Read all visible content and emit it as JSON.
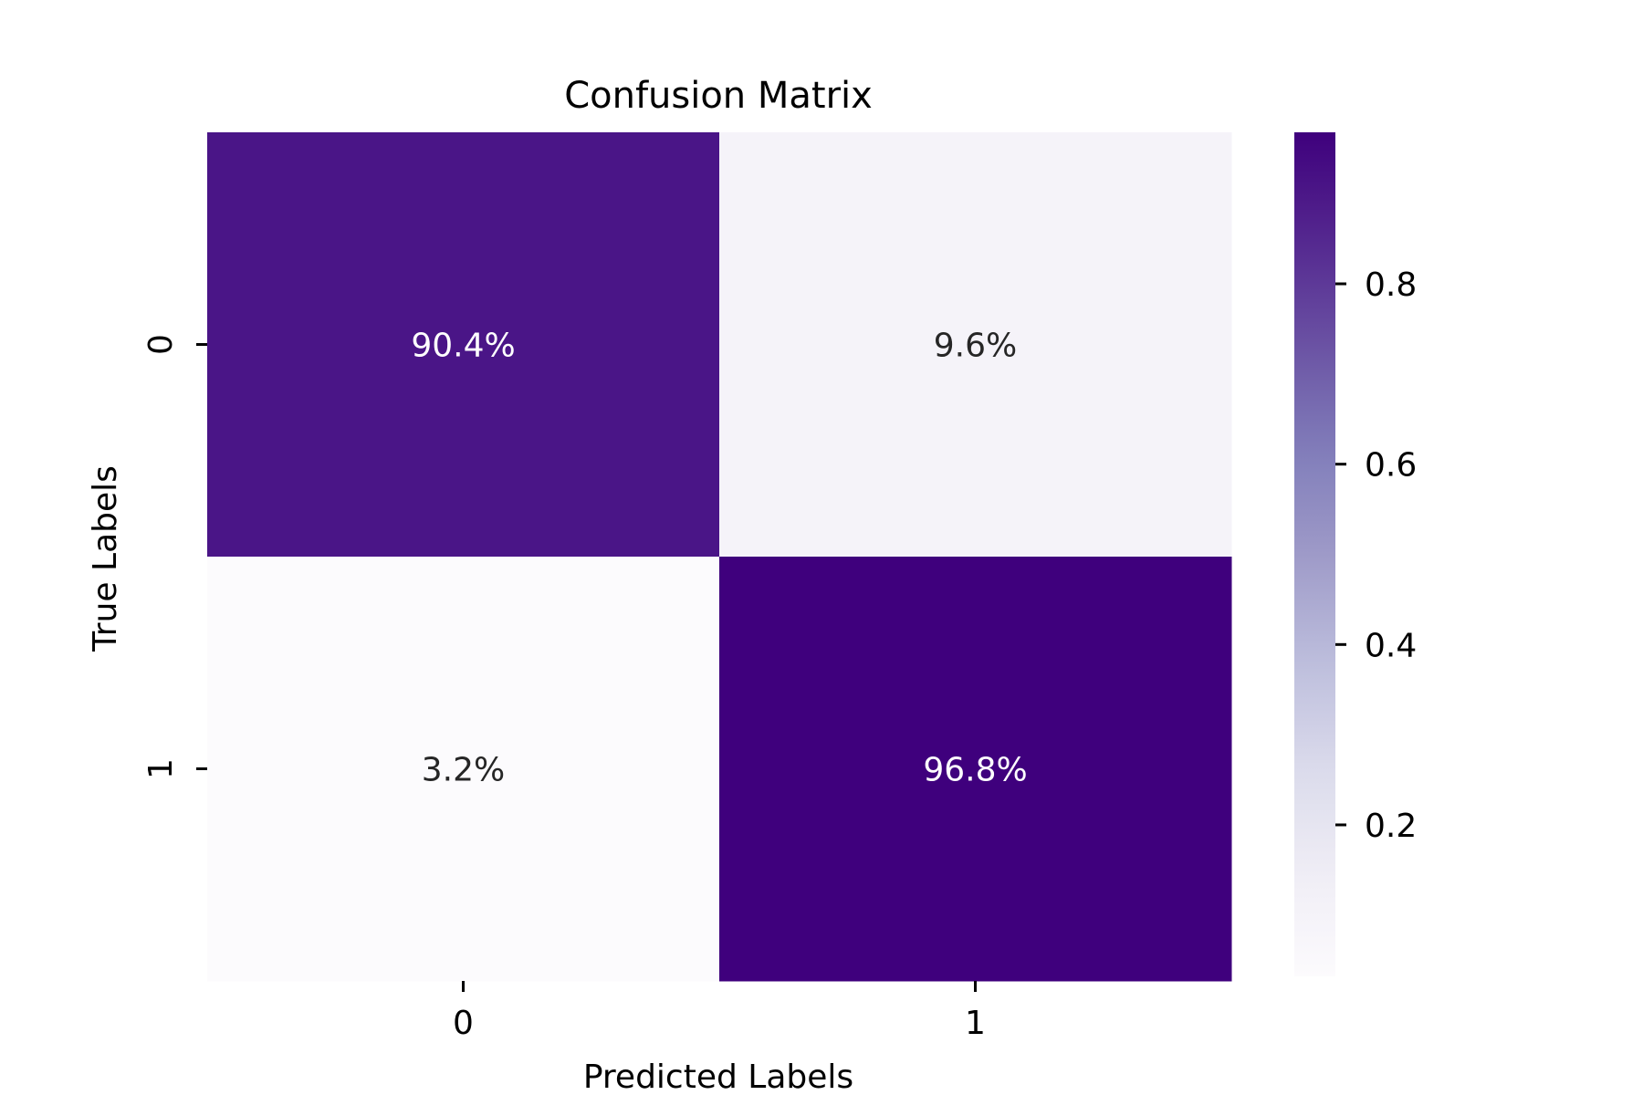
{
  "chart_data": {
    "type": "heatmap",
    "title": "Confusion Matrix",
    "xlabel": "Predicted Labels",
    "ylabel": "True Labels",
    "x_categories": [
      "0",
      "1"
    ],
    "y_categories": [
      "0",
      "1"
    ],
    "values": [
      [
        0.904,
        0.096
      ],
      [
        0.032,
        0.968
      ]
    ],
    "cell_labels": [
      [
        "90.4%",
        "9.6%"
      ],
      [
        "3.2%",
        "96.8%"
      ]
    ],
    "colormap": "Purples",
    "colorbar": {
      "range": [
        0.032,
        0.968
      ],
      "ticks": [
        0.2,
        0.4,
        0.6,
        0.8
      ],
      "tick_labels": [
        "0.2",
        "0.4",
        "0.6",
        "0.8"
      ]
    },
    "colors": {
      "low": "#fcfbfd",
      "high": "#54278f",
      "text_dark": "#262626",
      "text_light": "#ffffff"
    }
  }
}
